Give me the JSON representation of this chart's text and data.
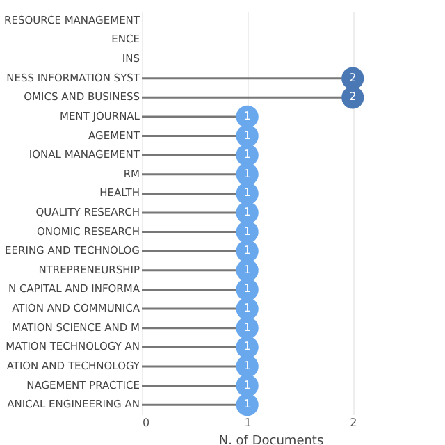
{
  "chart_data": {
    "type": "lollipop",
    "orientation": "horizontal",
    "categories": [
      "RESOURCE MANAGEMENT",
      "ENCE",
      "INS",
      "NESS INFORMATION SYST",
      "OMICS AND BUSINESS",
      "MENT JOURNAL",
      "AGEMENT",
      "IONAL MANAGEMENT",
      "RM",
      "HEALTH",
      "QUALITY RESEARCH",
      "ONOMIC RESEARCH",
      "EERING AND TECHNOLOG",
      "NTREPRENEURSHIP",
      "N CAPITAL AND INFORMA",
      "ATION AND COMMUNICA",
      "MATION SCIENCE AND M",
      "MATION TECHNOLOGY AN",
      "ATION AND TECHNOLOGY",
      "NAGEMENT PRACTICE",
      "ANICAL ENGINEERING AN"
    ],
    "values": [
      null,
      null,
      null,
      2,
      2,
      1,
      1,
      1,
      1,
      1,
      1,
      1,
      1,
      1,
      1,
      1,
      1,
      1,
      1,
      1,
      1
    ],
    "colors": [
      null,
      null,
      null,
      "#4a78b5",
      "#4a78b5",
      "#6aa8ee",
      "#6aa8ee",
      "#6aa8ee",
      "#6aa8ee",
      "#6aa8ee",
      "#6aa8ee",
      "#6aa8ee",
      "#6aa8ee",
      "#6aa8ee",
      "#6aa8ee",
      "#6aa8ee",
      "#6aa8ee",
      "#6aa8ee",
      "#6aa8ee",
      "#6aa8ee",
      "#6aa8ee"
    ],
    "xlabel": "N. of Documents",
    "xlim": [
      0,
      2.44
    ],
    "xticks": [
      0,
      1,
      2
    ],
    "grid": "x",
    "data_labels": true
  }
}
